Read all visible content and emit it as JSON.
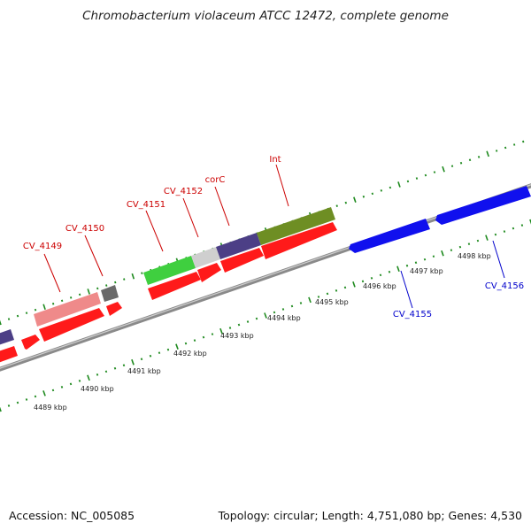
{
  "title": "Chromobacterium violaceum ATCC 12472, complete genome",
  "footer": {
    "accession": "Accession: NC_005085",
    "stats": "Topology: circular; Length: 4,751,080 bp; Genes: 4,530"
  },
  "colors": {
    "backbone": "#888888",
    "ticks": "#1e8a1e",
    "cds": "#ff1a1a",
    "label_forward": "#cc0000",
    "label_reverse": "#0000cc",
    "reverse_gene": "#1010ee"
  },
  "axis_labels": [
    "4489 kbp",
    "4490 kbp",
    "4491 kbp",
    "4492 kbp",
    "4493 kbp",
    "4494 kbp",
    "4495 kbp",
    "4496 kbp",
    "4497 kbp",
    "4498 kbp"
  ],
  "gene_labels": [
    {
      "text": "CV_4149",
      "strand": "forward"
    },
    {
      "text": "CV_4150",
      "strand": "forward"
    },
    {
      "text": "CV_4151",
      "strand": "forward"
    },
    {
      "text": "CV_4152",
      "strand": "forward"
    },
    {
      "text": "corC",
      "strand": "forward"
    },
    {
      "text": "Int",
      "strand": "forward"
    },
    {
      "text": "CV_4155",
      "strand": "reverse"
    },
    {
      "text": "CV_4156",
      "strand": "reverse"
    }
  ]
}
